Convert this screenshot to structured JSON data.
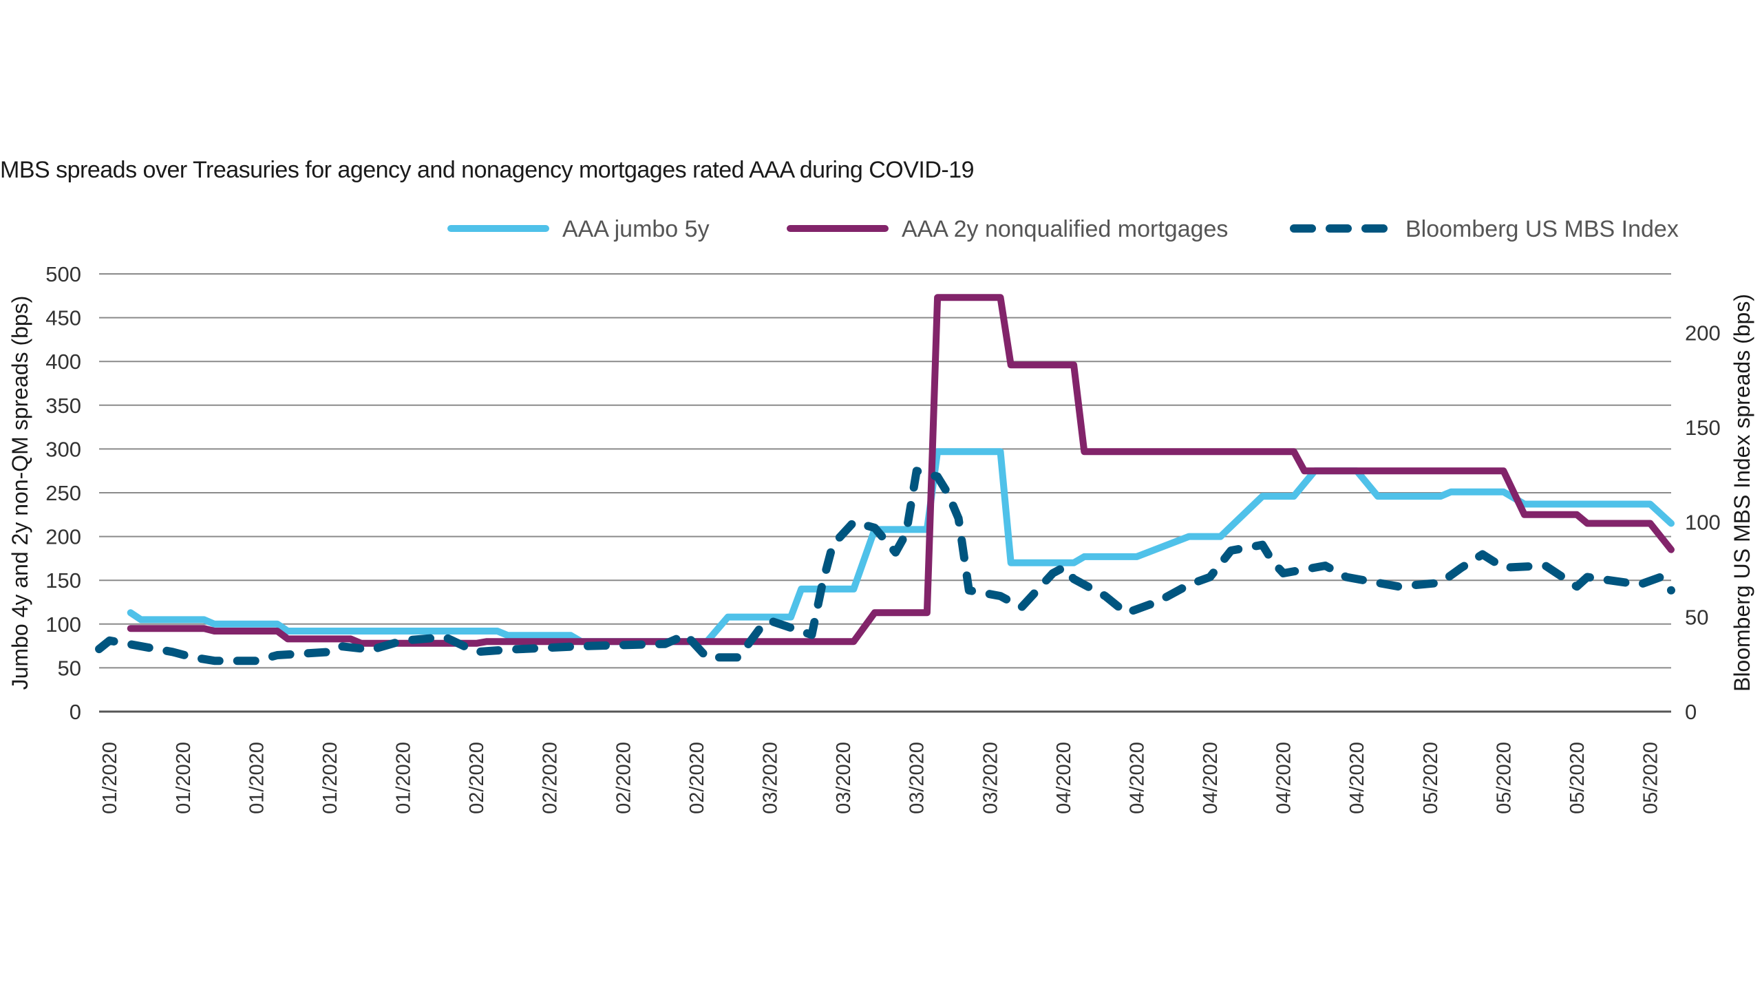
{
  "chart_data": {
    "type": "line",
    "title": "MBS spreads over Treasuries for agency and nonagency mortgages rated AAA during COVID-19",
    "ylabel_left": "Jumbo 4y and 2y non-QM spreads (bps)",
    "ylabel_right": "Bloomberg US MBS Index spreads (bps)",
    "ylim_left": [
      0,
      500
    ],
    "ylim_right": [
      0,
      231
    ],
    "yticks_left": [
      0,
      50,
      100,
      150,
      200,
      250,
      300,
      350,
      400,
      450,
      500
    ],
    "yticks_right": [
      0,
      50,
      100,
      150,
      200
    ],
    "xlim": [
      "2019-12-31",
      "2020-05-29"
    ],
    "xticks": [
      "2020-01-01",
      "2020-01-08",
      "2020-01-15",
      "2020-01-22",
      "2020-01-29",
      "2020-02-05",
      "2020-02-12",
      "2020-02-19",
      "2020-02-26",
      "2020-03-04",
      "2020-03-11",
      "2020-03-18",
      "2020-03-25",
      "2020-04-01",
      "2020-04-08",
      "2020-04-15",
      "2020-04-22",
      "2020-04-29",
      "2020-05-06",
      "2020-05-13",
      "2020-05-20",
      "2020-05-27"
    ],
    "xtick_labels": [
      "01/2020",
      "01/2020",
      "01/2020",
      "01/2020",
      "01/2020",
      "02/2020",
      "02/2020",
      "02/2020",
      "02/2020",
      "03/2020",
      "03/2020",
      "03/2020",
      "03/2020",
      "04/2020",
      "04/2020",
      "04/2020",
      "04/2020",
      "04/2020",
      "05/2020",
      "05/2020",
      "05/2020",
      "05/2020"
    ],
    "grid": true,
    "legend_position": "top",
    "series": [
      {
        "name": "AAA jumbo 5y",
        "axis": "left",
        "color": "#4FC1E9",
        "style": "solid",
        "points": [
          [
            "2020-01-03",
            113
          ],
          [
            "2020-01-04",
            105
          ],
          [
            "2020-01-10",
            105
          ],
          [
            "2020-01-11",
            100
          ],
          [
            "2020-01-17",
            100
          ],
          [
            "2020-01-18",
            92
          ],
          [
            "2020-02-07",
            92
          ],
          [
            "2020-02-08",
            87
          ],
          [
            "2020-02-14",
            87
          ],
          [
            "2020-02-15",
            80
          ],
          [
            "2020-02-27",
            80
          ],
          [
            "2020-02-29",
            108
          ],
          [
            "2020-03-06",
            108
          ],
          [
            "2020-03-07",
            140
          ],
          [
            "2020-03-12",
            140
          ],
          [
            "2020-03-14",
            208
          ],
          [
            "2020-03-19",
            208
          ],
          [
            "2020-03-20",
            297
          ],
          [
            "2020-03-26",
            297
          ],
          [
            "2020-03-27",
            170
          ],
          [
            "2020-04-02",
            170
          ],
          [
            "2020-04-03",
            177
          ],
          [
            "2020-04-08",
            177
          ],
          [
            "2020-04-13",
            200
          ],
          [
            "2020-04-16",
            200
          ],
          [
            "2020-04-20",
            246
          ],
          [
            "2020-04-23",
            246
          ],
          [
            "2020-04-25",
            275
          ],
          [
            "2020-04-29",
            275
          ],
          [
            "2020-05-01",
            246
          ],
          [
            "2020-05-07",
            246
          ],
          [
            "2020-05-08",
            251
          ],
          [
            "2020-05-13",
            251
          ],
          [
            "2020-05-15",
            237
          ],
          [
            "2020-05-27",
            237
          ],
          [
            "2020-05-29",
            215
          ]
        ]
      },
      {
        "name": "AAA 2y nonqualified mortgages",
        "axis": "left",
        "color": "#82246A",
        "style": "solid",
        "points": [
          [
            "2020-01-03",
            95
          ],
          [
            "2020-01-10",
            95
          ],
          [
            "2020-01-11",
            92
          ],
          [
            "2020-01-17",
            92
          ],
          [
            "2020-01-18",
            83
          ],
          [
            "2020-01-24",
            83
          ],
          [
            "2020-01-25",
            78
          ],
          [
            "2020-02-05",
            78
          ],
          [
            "2020-02-06",
            80
          ],
          [
            "2020-03-12",
            80
          ],
          [
            "2020-03-14",
            113
          ],
          [
            "2020-03-19",
            113
          ],
          [
            "2020-03-20",
            473
          ],
          [
            "2020-03-26",
            473
          ],
          [
            "2020-03-27",
            396
          ],
          [
            "2020-04-02",
            396
          ],
          [
            "2020-04-03",
            297
          ],
          [
            "2020-04-23",
            297
          ],
          [
            "2020-04-24",
            275
          ],
          [
            "2020-05-13",
            275
          ],
          [
            "2020-05-15",
            225
          ],
          [
            "2020-05-20",
            225
          ],
          [
            "2020-05-21",
            215
          ],
          [
            "2020-05-27",
            215
          ],
          [
            "2020-05-29",
            185
          ]
        ]
      },
      {
        "name": "Bloomberg US MBS Index",
        "axis": "right",
        "color": "#00557F",
        "style": "dashed",
        "points": [
          [
            "2019-12-31",
            33
          ],
          [
            "2020-01-01",
            37.5
          ],
          [
            "2020-01-07",
            31.5
          ],
          [
            "2020-01-09",
            28.6
          ],
          [
            "2020-01-11",
            26.8
          ],
          [
            "2020-01-15",
            26.8
          ],
          [
            "2020-01-17",
            29.8
          ],
          [
            "2020-01-22",
            31.5
          ],
          [
            "2020-01-23",
            34.5
          ],
          [
            "2020-01-26",
            32.7
          ],
          [
            "2020-01-29",
            37.5
          ],
          [
            "2020-02-02",
            39.3
          ],
          [
            "2020-02-05",
            31.5
          ],
          [
            "2020-02-08",
            32.7
          ],
          [
            "2020-02-15",
            34.5
          ],
          [
            "2020-02-23",
            35.7
          ],
          [
            "2020-02-25",
            40.5
          ],
          [
            "2020-02-27",
            28.6
          ],
          [
            "2020-03-01",
            28.6
          ],
          [
            "2020-03-03",
            43.5
          ],
          [
            "2020-03-04",
            48
          ],
          [
            "2020-03-08",
            40.5
          ],
          [
            "2020-03-09",
            67
          ],
          [
            "2020-03-10",
            88
          ],
          [
            "2020-03-12",
            100
          ],
          [
            "2020-03-14",
            97
          ],
          [
            "2020-03-16",
            84
          ],
          [
            "2020-03-17",
            94
          ],
          [
            "2020-03-18",
            127
          ],
          [
            "2020-03-20",
            124
          ],
          [
            "2020-03-21",
            115
          ],
          [
            "2020-03-22",
            102
          ],
          [
            "2020-03-23",
            64
          ],
          [
            "2020-03-24",
            63
          ],
          [
            "2020-03-26",
            61
          ],
          [
            "2020-03-28",
            55
          ],
          [
            "2020-03-31",
            73
          ],
          [
            "2020-04-01",
            76
          ],
          [
            "2020-04-02",
            70
          ],
          [
            "2020-04-05",
            61
          ],
          [
            "2020-04-07",
            52
          ],
          [
            "2020-04-10",
            58
          ],
          [
            "2020-04-13",
            67
          ],
          [
            "2020-04-15",
            71
          ],
          [
            "2020-04-17",
            85
          ],
          [
            "2020-04-20",
            88
          ],
          [
            "2020-04-21",
            79
          ],
          [
            "2020-04-22",
            73
          ],
          [
            "2020-04-24",
            75
          ],
          [
            "2020-04-26",
            77
          ],
          [
            "2020-04-28",
            71
          ],
          [
            "2020-05-01",
            68
          ],
          [
            "2020-05-03",
            66
          ],
          [
            "2020-05-05",
            67
          ],
          [
            "2020-05-07",
            68
          ],
          [
            "2020-05-09",
            76
          ],
          [
            "2020-05-11",
            83
          ],
          [
            "2020-05-13",
            76
          ],
          [
            "2020-05-17",
            77
          ],
          [
            "2020-05-20",
            66
          ],
          [
            "2020-05-21",
            71
          ],
          [
            "2020-05-26",
            67
          ],
          [
            "2020-05-28",
            71
          ],
          [
            "2020-05-29",
            64
          ]
        ]
      }
    ]
  }
}
